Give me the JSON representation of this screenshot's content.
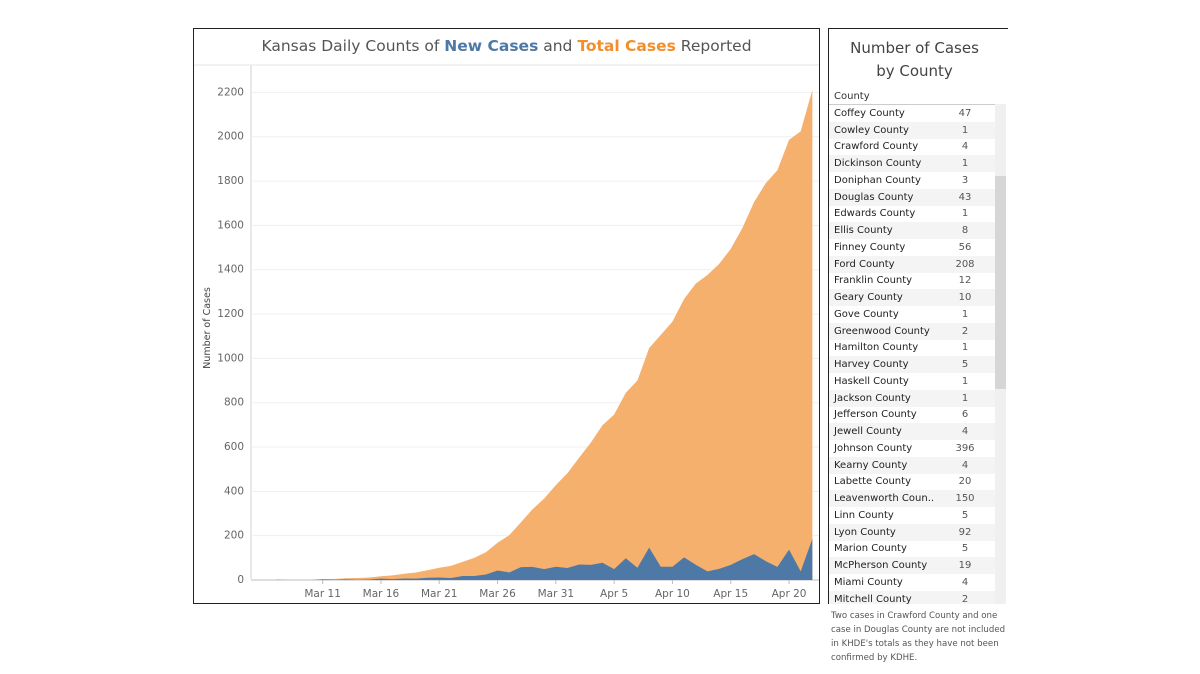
{
  "chart": {
    "title_prefix": "Kansas Daily Counts of ",
    "title_new": "New Cases",
    "title_and": " and ",
    "title_total": "Total Cases",
    "title_suffix": " Reported"
  },
  "chart_data": {
    "type": "area",
    "ylabel": "Number of Cases",
    "xlabel": "",
    "ylim": [
      0,
      2300
    ],
    "yticks": [
      0,
      200,
      400,
      600,
      800,
      1000,
      1200,
      1400,
      1600,
      1800,
      2000,
      2200
    ],
    "x_tick_labels": [
      "Mar 11",
      "Mar 16",
      "Mar 21",
      "Mar 26",
      "Mar 31",
      "Apr 5",
      "Apr 10",
      "Apr 15",
      "Apr 20"
    ],
    "x_start_date": "Mar 7",
    "grid": true,
    "legend": "none",
    "series": [
      {
        "name": "Total Cases",
        "color": "#f5b06e",
        "values": [
          1,
          1,
          1,
          1,
          4,
          5,
          8,
          9,
          11,
          17,
          21,
          28,
          34,
          44,
          55,
          64,
          82,
          100,
          125,
          168,
          202,
          260,
          319,
          368,
          428,
          482,
          552,
          620,
          698,
          747,
          845,
          900,
          1046,
          1106,
          1166,
          1268,
          1337,
          1376,
          1426,
          1494,
          1588,
          1705,
          1790,
          1849,
          1986,
          2025,
          2211
        ]
      },
      {
        "name": "New Cases",
        "color": "#4e79a7",
        "values": [
          1,
          0,
          0,
          0,
          3,
          1,
          3,
          1,
          2,
          6,
          4,
          7,
          6,
          10,
          11,
          9,
          18,
          18,
          25,
          43,
          34,
          58,
          59,
          49,
          60,
          54,
          70,
          68,
          78,
          49,
          98,
          55,
          146,
          60,
          60,
          102,
          69,
          39,
          50,
          68,
          94,
          117,
          85,
          59,
          137,
          39,
          186
        ]
      }
    ]
  },
  "county_panel": {
    "title_line1": "Number of Cases",
    "title_line2": "by County",
    "column_header": "County",
    "rows": [
      {
        "name": "Coffey County",
        "count": "47"
      },
      {
        "name": "Cowley County",
        "count": "1"
      },
      {
        "name": "Crawford County",
        "count": "4"
      },
      {
        "name": "Dickinson County",
        "count": "1"
      },
      {
        "name": "Doniphan County",
        "count": "3"
      },
      {
        "name": "Douglas County",
        "count": "43"
      },
      {
        "name": "Edwards County",
        "count": "1"
      },
      {
        "name": "Ellis County",
        "count": "8"
      },
      {
        "name": "Finney County",
        "count": "56"
      },
      {
        "name": "Ford County",
        "count": "208"
      },
      {
        "name": "Franklin County",
        "count": "12"
      },
      {
        "name": "Geary County",
        "count": "10"
      },
      {
        "name": "Gove County",
        "count": "1"
      },
      {
        "name": "Greenwood County",
        "count": "2"
      },
      {
        "name": "Hamilton County",
        "count": "1"
      },
      {
        "name": "Harvey County",
        "count": "5"
      },
      {
        "name": "Haskell County",
        "count": "1"
      },
      {
        "name": "Jackson County",
        "count": "1"
      },
      {
        "name": "Jefferson County",
        "count": "6"
      },
      {
        "name": "Jewell County",
        "count": "4"
      },
      {
        "name": "Johnson County",
        "count": "396"
      },
      {
        "name": "Kearny County",
        "count": "4"
      },
      {
        "name": "Labette County",
        "count": "20"
      },
      {
        "name": "Leavenworth Coun..",
        "count": "150"
      },
      {
        "name": "Linn County",
        "count": "5"
      },
      {
        "name": "Lyon County",
        "count": "92"
      },
      {
        "name": "Marion County",
        "count": "5"
      },
      {
        "name": "McPherson County",
        "count": "19"
      },
      {
        "name": "Miami County",
        "count": "4"
      },
      {
        "name": "Mitchell County",
        "count": "2"
      }
    ],
    "note": "Two cases in Crawford County and one case in Douglas County are not included in KHDE's totals as they have not been confirmed by KDHE."
  }
}
